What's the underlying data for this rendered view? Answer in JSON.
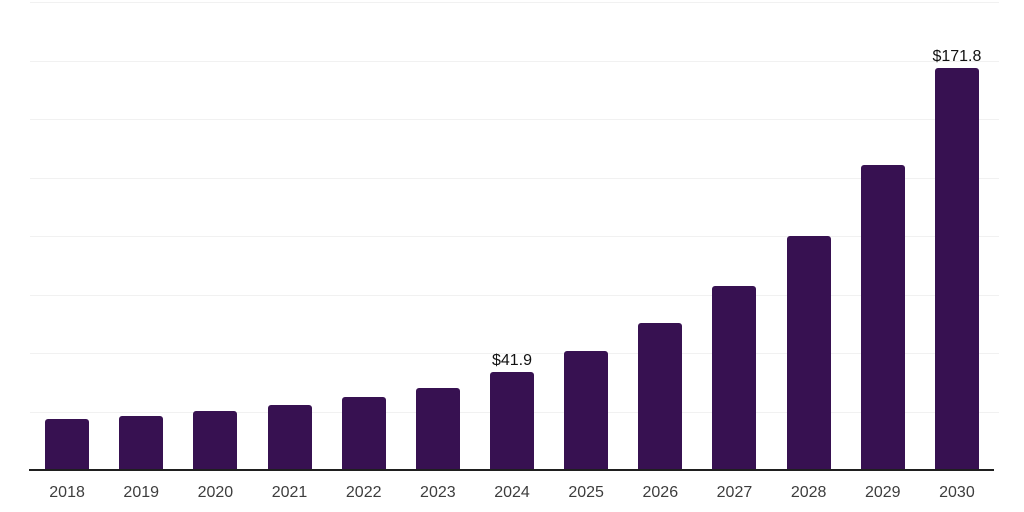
{
  "chart_data": {
    "type": "bar",
    "title": "",
    "xlabel": "",
    "ylabel": "",
    "categories": [
      "2018",
      "2019",
      "2020",
      "2021",
      "2022",
      "2023",
      "2024",
      "2025",
      "2026",
      "2027",
      "2028",
      "2029",
      "2030"
    ],
    "values": [
      21.7,
      23.1,
      25.1,
      27.8,
      31.1,
      35.2,
      41.9,
      50.9,
      62.8,
      78.8,
      100.2,
      130.5,
      171.8
    ],
    "data_labels": [
      {
        "category": "2024",
        "text": "$41.9"
      },
      {
        "category": "2030",
        "text": "$171.8"
      }
    ],
    "ylim": [
      0,
      200
    ],
    "gridline_step": 25,
    "grid": true,
    "legend": false,
    "y_axis_labels_visible": false,
    "colors": {
      "bar": "#371151",
      "axis": "#1f1f1f",
      "gridline": "#f1f1f1",
      "tick_label": "#3d3d3d",
      "data_label": "#111111",
      "background": "#ffffff"
    }
  }
}
